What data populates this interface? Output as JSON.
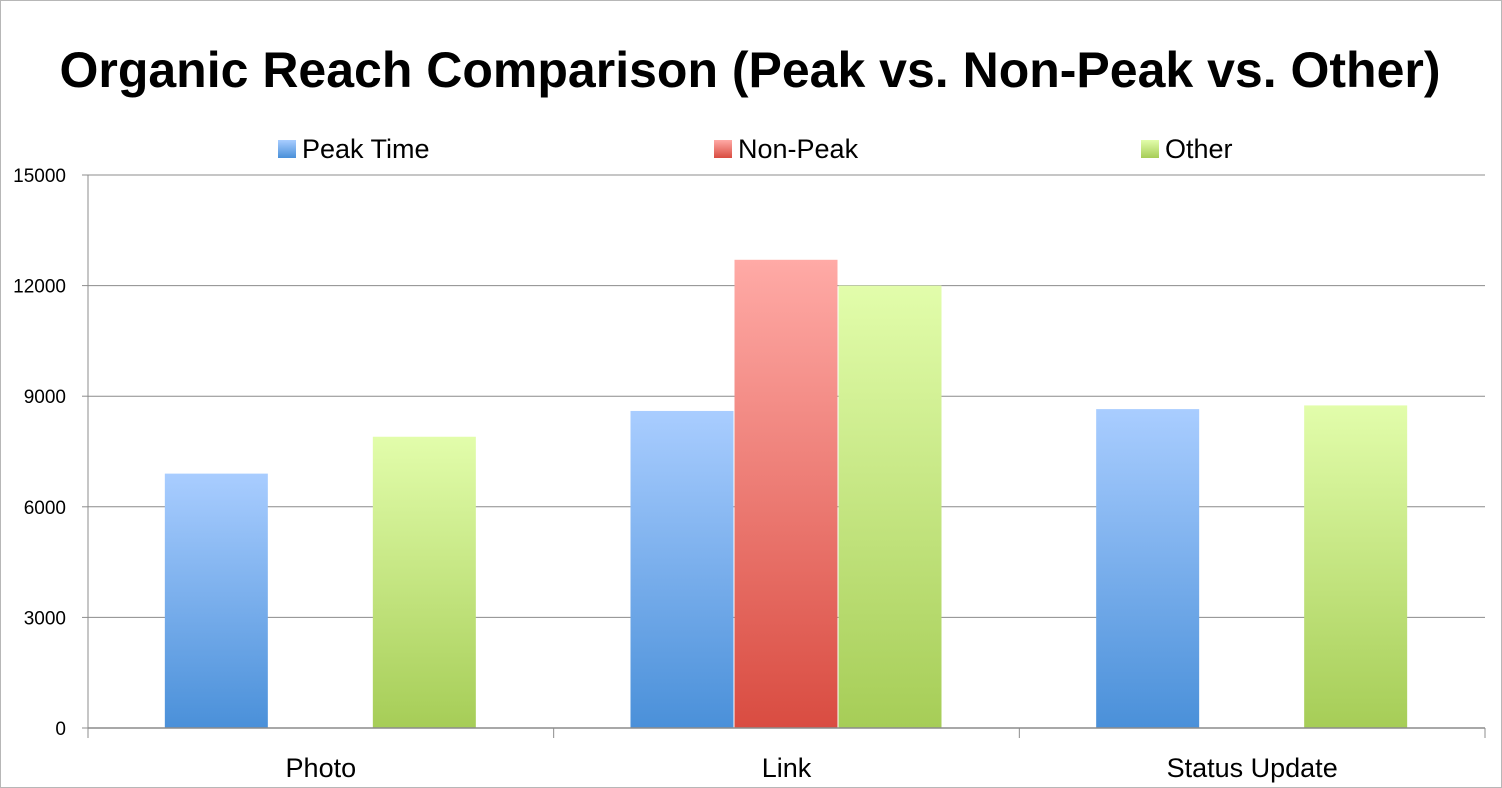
{
  "chart_data": {
    "type": "bar",
    "title": "Organic Reach Comparison (Peak vs. Non-Peak vs. Other)",
    "categories": [
      "Photo",
      "Link",
      "Status Update"
    ],
    "series": [
      {
        "name": "Peak Time",
        "values": [
          6900,
          8600,
          8650
        ],
        "color_top": "#a9cdff",
        "color_bottom": "#4a90d9"
      },
      {
        "name": "Non-Peak",
        "values": [
          0,
          12700,
          0
        ],
        "color_top": "#ffaaa6",
        "color_bottom": "#d94c41"
      },
      {
        "name": "Other",
        "values": [
          7900,
          12000,
          8750
        ],
        "color_top": "#e2fdab",
        "color_bottom": "#a6cd57"
      }
    ],
    "yticks": [
      "0",
      "3000",
      "6000",
      "9000",
      "12000",
      "15000"
    ],
    "ylim": [
      0,
      15000
    ],
    "legend_position": "top",
    "grid": true
  }
}
